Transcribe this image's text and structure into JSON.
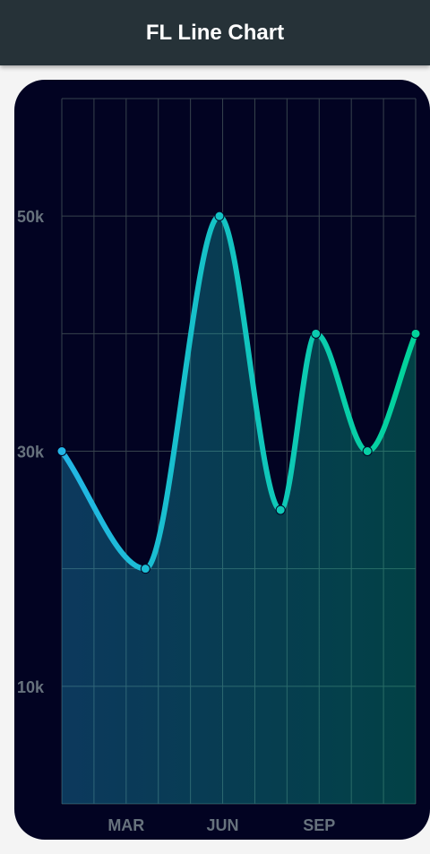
{
  "app_bar": {
    "title": "FL Line Chart"
  },
  "colors": {
    "app_bar": "#263238",
    "card_bg": "#020322",
    "grid": "#37434d",
    "gradient_start": "#23b6e6",
    "gradient_end": "#02d39a",
    "tick_label": "#67727d"
  },
  "chart_data": {
    "type": "line",
    "x": [
      0,
      2.6,
      4.9,
      6.8,
      7.9,
      9.5,
      11
    ],
    "y": [
      3,
      2,
      5,
      2.5,
      4,
      3,
      4
    ],
    "xlim": [
      0,
      11
    ],
    "ylim": [
      0,
      6
    ],
    "x_ticks": [
      {
        "value": 2,
        "label": "MAR"
      },
      {
        "value": 5,
        "label": "JUN"
      },
      {
        "value": 8,
        "label": "SEP"
      }
    ],
    "y_ticks": [
      {
        "value": 1,
        "label": "10k"
      },
      {
        "value": 3,
        "label": "30k"
      },
      {
        "value": 5,
        "label": "50k"
      }
    ],
    "grid": true,
    "curved": true,
    "area_fill": true,
    "dots": true
  }
}
